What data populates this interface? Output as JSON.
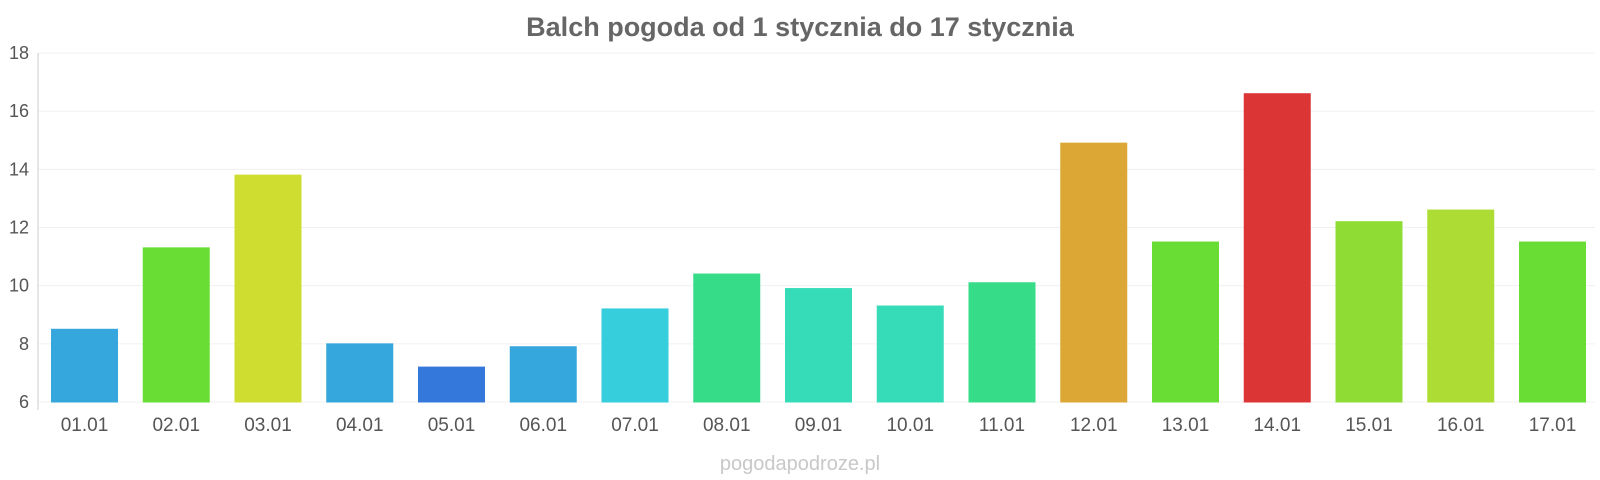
{
  "chart_data": {
    "type": "bar",
    "title": "Balch pogoda od 1 stycznia do 17 stycznia",
    "xlabel": "",
    "ylabel": "",
    "ylim": [
      6,
      18
    ],
    "yticks": [
      "6",
      "8",
      "10",
      "12",
      "14",
      "16",
      "18"
    ],
    "grid": true,
    "categories": [
      "01.01",
      "02.01",
      "03.01",
      "04.01",
      "05.01",
      "06.01",
      "07.01",
      "08.01",
      "09.01",
      "10.01",
      "11.01",
      "12.01",
      "13.01",
      "14.01",
      "15.01",
      "16.01",
      "17.01"
    ],
    "values": [
      8.5,
      11.3,
      13.8,
      8.0,
      7.2,
      7.9,
      9.2,
      10.4,
      9.9,
      9.3,
      10.1,
      14.9,
      11.5,
      16.6,
      12.2,
      12.6,
      11.5
    ],
    "colors": [
      "#36a7dc",
      "#69dd34",
      "#cfdd30",
      "#36a7dc",
      "#3578dc",
      "#36a7dc",
      "#36cddc",
      "#36dc88",
      "#36dcb8",
      "#36dcb8",
      "#36dc88",
      "#dca734",
      "#69dd34",
      "#dc3535",
      "#8fdd34",
      "#addd34",
      "#69dd34"
    ]
  },
  "watermark": "pogodapodroze.pl"
}
